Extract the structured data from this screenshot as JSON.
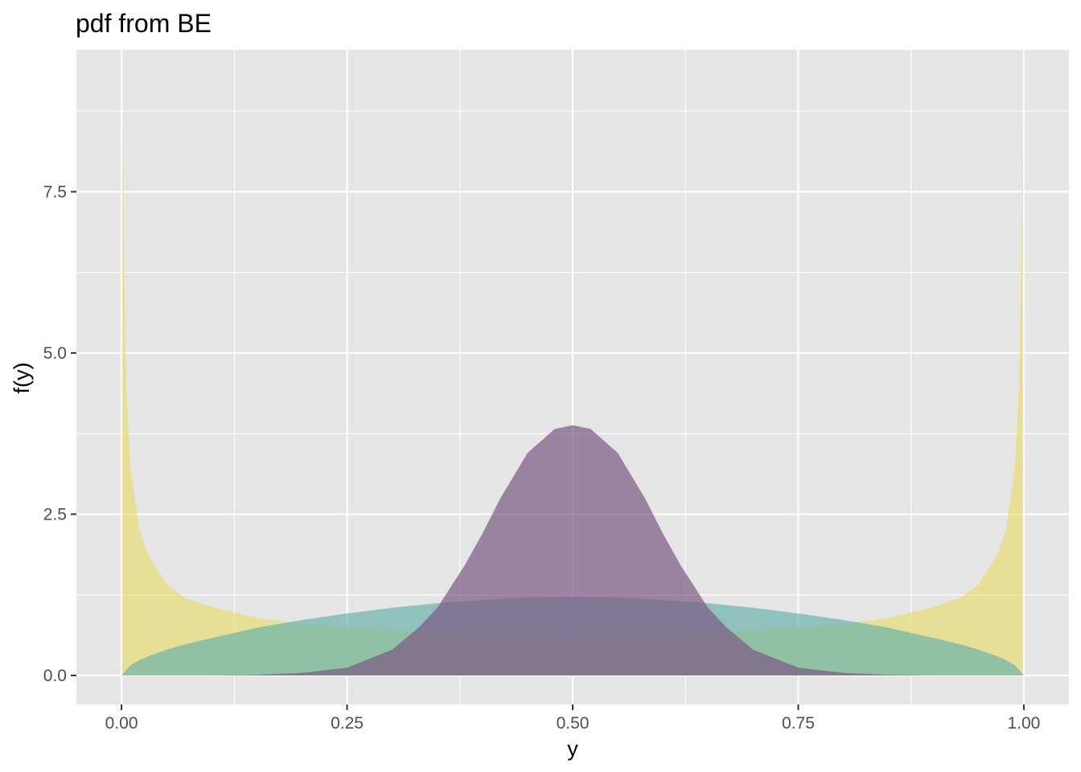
{
  "chart_data": {
    "type": "area",
    "title": "pdf from  BE",
    "xlabel": "y",
    "ylabel": "f(y)",
    "xlim": [
      -0.05,
      1.05
    ],
    "ylim": [
      -0.45,
      9.7
    ],
    "x_ticks": [
      0.0,
      0.25,
      0.5,
      0.75,
      1.0
    ],
    "x_tick_labels": [
      "0.00",
      "0.25",
      "0.50",
      "0.75",
      "1.00"
    ],
    "y_ticks": [
      0.0,
      2.5,
      5.0,
      7.5
    ],
    "y_tick_labels": [
      "0.0",
      "2.5",
      "5.0",
      "7.5"
    ],
    "grid": true,
    "legend": "none",
    "panel_background": "#e5e5e5",
    "grid_color": "#ffffff",
    "series": [
      {
        "color": "#e8dd74",
        "opacity": 0.7,
        "x": [
          0.001,
          0.002,
          0.005,
          0.01,
          0.02,
          0.03,
          0.05,
          0.07,
          0.1,
          0.15,
          0.2,
          0.25,
          0.3,
          0.35,
          0.4,
          0.45,
          0.5,
          0.55,
          0.6,
          0.65,
          0.7,
          0.75,
          0.8,
          0.85,
          0.9,
          0.93,
          0.95,
          0.97,
          0.98,
          0.99,
          0.995,
          0.998,
          0.999
        ],
        "y": [
          8.6,
          7.2,
          4.55,
          3.2,
          2.25,
          1.85,
          1.42,
          1.2,
          1.06,
          0.89,
          0.8,
          0.74,
          0.7,
          0.67,
          0.65,
          0.64,
          0.64,
          0.64,
          0.65,
          0.67,
          0.7,
          0.74,
          0.8,
          0.89,
          1.06,
          1.2,
          1.42,
          1.85,
          2.25,
          3.2,
          4.55,
          7.2,
          8.6
        ]
      },
      {
        "color": "#6bb3ad",
        "opacity": 0.7,
        "x": [
          0.0,
          0.01,
          0.02,
          0.03,
          0.05,
          0.07,
          0.1,
          0.15,
          0.2,
          0.25,
          0.3,
          0.35,
          0.4,
          0.45,
          0.5,
          0.55,
          0.6,
          0.65,
          0.7,
          0.75,
          0.8,
          0.85,
          0.9,
          0.93,
          0.95,
          0.97,
          0.98,
          0.99,
          1.0
        ],
        "y": [
          0.0,
          0.16,
          0.24,
          0.3,
          0.4,
          0.48,
          0.58,
          0.74,
          0.86,
          0.96,
          1.05,
          1.12,
          1.17,
          1.21,
          1.22,
          1.21,
          1.17,
          1.12,
          1.05,
          0.96,
          0.86,
          0.74,
          0.58,
          0.48,
          0.4,
          0.3,
          0.24,
          0.16,
          0.0
        ]
      },
      {
        "color": "#7a5984",
        "opacity": 0.7,
        "x": [
          0.1,
          0.15,
          0.2,
          0.25,
          0.3,
          0.33,
          0.35,
          0.38,
          0.4,
          0.42,
          0.45,
          0.48,
          0.5,
          0.52,
          0.55,
          0.58,
          0.6,
          0.62,
          0.65,
          0.67,
          0.7,
          0.75,
          0.8,
          0.85,
          0.9
        ],
        "y": [
          0.0,
          0.01,
          0.04,
          0.12,
          0.4,
          0.75,
          1.05,
          1.7,
          2.2,
          2.75,
          3.45,
          3.82,
          3.88,
          3.82,
          3.45,
          2.75,
          2.2,
          1.7,
          1.05,
          0.75,
          0.4,
          0.12,
          0.04,
          0.01,
          0.0
        ]
      }
    ]
  }
}
